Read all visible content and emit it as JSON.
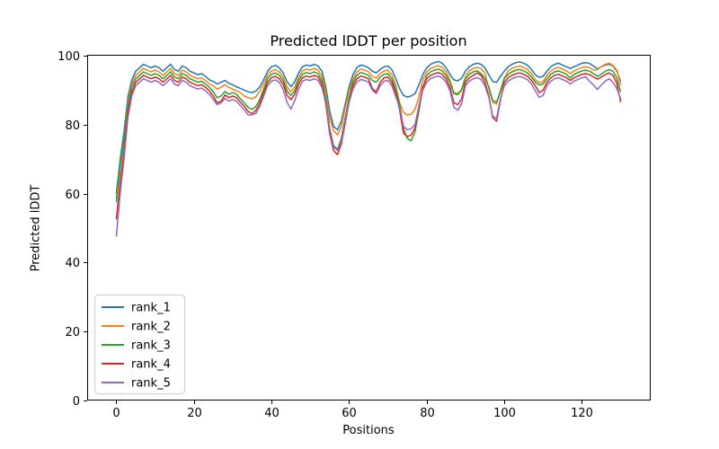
{
  "chart_data": {
    "type": "line",
    "title": "Predicted lDDT per position",
    "xlabel": "Positions",
    "ylabel": "Predicted lDDT",
    "xlim": [
      -7.5,
      137.5
    ],
    "ylim": [
      0,
      100
    ],
    "xticks": [
      0,
      20,
      40,
      60,
      80,
      100,
      120
    ],
    "yticks": [
      0,
      20,
      40,
      60,
      80,
      100
    ],
    "grid": false,
    "legend_position": "lower left",
    "x_start": 0,
    "x_step": 1,
    "series": [
      {
        "name": "rank_1",
        "color": "#1f77b4",
        "values": [
          60,
          70,
          78,
          88,
          93,
          95.5,
          96.5,
          97.5,
          97,
          96.5,
          97,
          96.5,
          95.5,
          96.5,
          97.5,
          96,
          95.5,
          97,
          96.5,
          95.5,
          95,
          94.5,
          94.8,
          94,
          93,
          92.5,
          91.8,
          92.3,
          92.8,
          92,
          91.5,
          91,
          90.5,
          90,
          89.5,
          89.3,
          89.8,
          91,
          93,
          95.5,
          96.8,
          97.2,
          96.5,
          95,
          92.5,
          91,
          92.5,
          95,
          96.8,
          97.3,
          97,
          97.5,
          97,
          95.5,
          91,
          84,
          79.5,
          78.5,
          81,
          86,
          91,
          94.5,
          96.5,
          97.3,
          97,
          96.5,
          95.5,
          95,
          96,
          96.8,
          97,
          96,
          93.5,
          90.5,
          88.5,
          88,
          88.3,
          89,
          91.5,
          94.5,
          96.5,
          97.5,
          98,
          98.3,
          97.8,
          96.5,
          94.5,
          93,
          92.7,
          93.5,
          95.5,
          96.8,
          97.5,
          97.8,
          97.5,
          96.5,
          94.5,
          92.5,
          92.3,
          94,
          95.5,
          96.8,
          97.5,
          98,
          98.2,
          97.8,
          97.2,
          96,
          94.5,
          93.7,
          94,
          95.5,
          96.8,
          97.5,
          97.8,
          97.3,
          96.8,
          96.3,
          96.8,
          97.3,
          97.8,
          98,
          97.7,
          97,
          96.2,
          96.8,
          97.3,
          97.5,
          97,
          95.5,
          92.5
        ]
      },
      {
        "name": "rank_2",
        "color": "#ff7f0e",
        "values": [
          58.5,
          68,
          76,
          86.5,
          91.8,
          94.3,
          95.3,
          96.3,
          95.8,
          95.3,
          95.8,
          95.3,
          94.3,
          95.3,
          96.3,
          94.8,
          94.3,
          95.8,
          95.3,
          94.3,
          93.8,
          93.3,
          93.6,
          92.8,
          91.8,
          91.3,
          90.3,
          90.8,
          91.6,
          90.8,
          90.3,
          89.8,
          89.3,
          88.3,
          87.8,
          87.5,
          88.1,
          89.8,
          91.8,
          94.3,
          95.6,
          96,
          95.3,
          93.8,
          91,
          89.5,
          91,
          93.8,
          95.6,
          96.1,
          95.8,
          96.3,
          95.8,
          94,
          89.5,
          82,
          78.3,
          77,
          79.5,
          84.8,
          89.8,
          93.3,
          95.3,
          96.1,
          95.8,
          95.3,
          94,
          93.5,
          94.8,
          95.6,
          95.8,
          94.5,
          91.5,
          86.5,
          83.5,
          82.8,
          83,
          84.5,
          88,
          93,
          95.3,
          96.3,
          96.8,
          97.1,
          96.6,
          95.3,
          92.8,
          89.3,
          89,
          90.2,
          94,
          95.6,
          96.3,
          96.6,
          96.3,
          95,
          90.5,
          86.5,
          86,
          90,
          93.5,
          95.6,
          96.3,
          96.8,
          97,
          96.6,
          96,
          94.8,
          93,
          92.2,
          92.5,
          94.3,
          95.6,
          96.3,
          96.6,
          96.1,
          95.6,
          94.8,
          95.6,
          96.1,
          96.6,
          96.8,
          96.5,
          95.8,
          96,
          96.8,
          97.5,
          97.8,
          97.2,
          95.8,
          91.5
        ]
      },
      {
        "name": "rank_3",
        "color": "#2ca02c",
        "values": [
          57.5,
          67,
          75.5,
          85.5,
          90.8,
          93.3,
          94.3,
          95.3,
          94.8,
          94.3,
          94.8,
          94.3,
          93.3,
          94.3,
          95.3,
          93.8,
          93.3,
          94.8,
          94.3,
          93.3,
          92.8,
          92.3,
          92.6,
          91.8,
          90.8,
          89.5,
          87.8,
          88.3,
          89.6,
          88.8,
          89.3,
          88.8,
          87.5,
          86.3,
          85,
          84.4,
          85.3,
          87.3,
          90.3,
          93.3,
          94.6,
          95,
          94.3,
          92.8,
          89.8,
          88.5,
          89.8,
          92.8,
          94.6,
          95.1,
          94.8,
          95.3,
          94.8,
          92.8,
          87.5,
          79,
          74,
          72.8,
          76,
          82,
          87.8,
          92.3,
          94.3,
          95.1,
          94.8,
          94.3,
          92.8,
          92.3,
          93.8,
          94.6,
          94.8,
          93.3,
          90.3,
          86,
          79,
          76,
          75.3,
          78,
          84,
          90.5,
          94.3,
          95.3,
          95.8,
          96.1,
          95.6,
          94.3,
          92.3,
          89,
          88.7,
          90,
          93.3,
          94.6,
          95.3,
          95.6,
          94.8,
          93.5,
          91,
          87,
          86.5,
          89.5,
          93.3,
          94.6,
          95.3,
          95.8,
          96,
          95.6,
          95,
          93.8,
          92.3,
          91.5,
          91.8,
          93.3,
          94.6,
          95.3,
          95.6,
          95.1,
          94.6,
          93.5,
          94.6,
          95.1,
          95.6,
          95.8,
          95.5,
          94.8,
          94,
          94.6,
          95.5,
          96,
          95.5,
          93.5,
          89.5
        ]
      },
      {
        "name": "rank_4",
        "color": "#d62728",
        "values": [
          52.5,
          63,
          72,
          83.5,
          89.3,
          92.3,
          93.3,
          94.3,
          93.8,
          93.3,
          93.8,
          93.3,
          92.3,
          93.3,
          94.3,
          92.8,
          92.3,
          93.8,
          93.3,
          92.3,
          91.8,
          91.3,
          91.6,
          90.8,
          89.8,
          88.3,
          86.3,
          86.8,
          88.6,
          87.8,
          88.3,
          87.8,
          86.5,
          85.3,
          83.8,
          83.2,
          84.2,
          86.3,
          89.3,
          92.3,
          93.6,
          94,
          93.3,
          91.8,
          88.5,
          87.3,
          88.8,
          91.8,
          93.6,
          94.1,
          93.8,
          94.3,
          93.8,
          91.8,
          86,
          77.5,
          72.5,
          71.3,
          74.5,
          80.5,
          86.5,
          91.3,
          93.3,
          94.1,
          93.8,
          93.3,
          90.5,
          89.5,
          92.3,
          93.6,
          93.8,
          92.3,
          89.3,
          84.5,
          77.5,
          76.5,
          77,
          79,
          85,
          91,
          93.3,
          94.3,
          94.8,
          95.1,
          94.6,
          93.3,
          90.8,
          86.3,
          85.8,
          87.5,
          92.3,
          93.6,
          94.3,
          95,
          94.3,
          92.3,
          88.5,
          82,
          81,
          87,
          92.3,
          93.6,
          94.3,
          94.8,
          95,
          94.6,
          94,
          92.8,
          91.3,
          89.3,
          90,
          92.3,
          93.6,
          94.3,
          94.6,
          94.1,
          93.6,
          92.8,
          93.6,
          94.1,
          94.6,
          94.8,
          94.5,
          93.8,
          93.2,
          93.8,
          94.5,
          95,
          94.3,
          92,
          86.5
        ]
      },
      {
        "name": "rank_5",
        "color": "#9467bd",
        "values": [
          47.5,
          60,
          70,
          82,
          88.3,
          91.3,
          92.3,
          93.3,
          92.8,
          92.3,
          92.8,
          92.3,
          91.3,
          92.3,
          93.3,
          91.8,
          91.3,
          92.8,
          92.3,
          91.3,
          90.8,
          90.3,
          90.6,
          89.8,
          88.8,
          87.3,
          85.8,
          86.3,
          87.6,
          86.8,
          87.3,
          86.8,
          85.5,
          84.3,
          82.8,
          82.8,
          83.3,
          85.3,
          88.3,
          91.3,
          92.6,
          93,
          92.3,
          90.3,
          86.5,
          84.5,
          87,
          90.3,
          92.6,
          93.1,
          92.8,
          93.3,
          92.8,
          90.8,
          86.5,
          78.5,
          73.5,
          72.5,
          75.5,
          81.5,
          86.5,
          90.3,
          92.3,
          93.1,
          92.8,
          92.3,
          90,
          89,
          91.3,
          92.6,
          92.8,
          91.3,
          88.3,
          85,
          79.5,
          78.5,
          78.8,
          80,
          85.5,
          90,
          92.3,
          93.3,
          93.8,
          94.1,
          93.6,
          92.3,
          89.8,
          85,
          84.2,
          86,
          91.3,
          92.6,
          93.3,
          93.6,
          93.1,
          91.3,
          88,
          82.5,
          81.8,
          87.5,
          91.3,
          92.6,
          93.3,
          93.8,
          94,
          93.6,
          93,
          91.8,
          89.8,
          87.9,
          88.5,
          91.3,
          92.6,
          93.3,
          93.6,
          93.1,
          92.6,
          91.8,
          92.6,
          93.1,
          93.6,
          93.8,
          92.5,
          91.5,
          90.2,
          91.5,
          92.6,
          93.3,
          92.3,
          90.5,
          87.5
        ]
      }
    ]
  }
}
